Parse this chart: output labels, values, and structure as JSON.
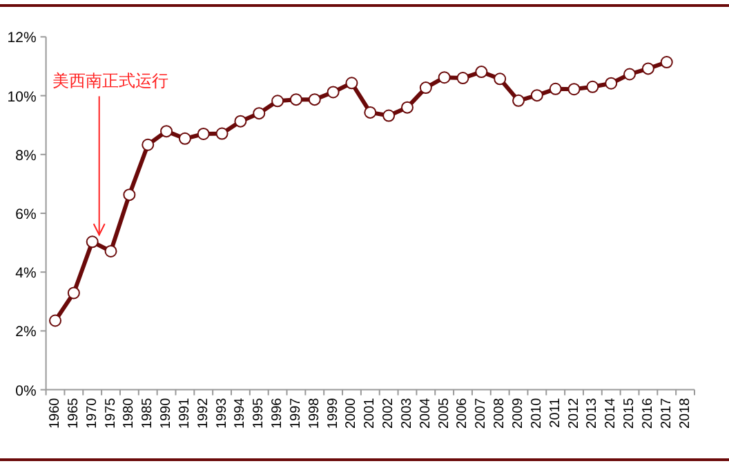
{
  "chart_data": {
    "type": "line",
    "categories": [
      "1960",
      "1965",
      "1970",
      "1975",
      "1980",
      "1985",
      "1990",
      "1991",
      "1992",
      "1993",
      "1994",
      "1995",
      "1996",
      "1997",
      "1998",
      "1999",
      "2000",
      "2001",
      "2002",
      "2003",
      "2004",
      "2005",
      "2006",
      "2007",
      "2008",
      "2009",
      "2010",
      "2011",
      "2012",
      "2013",
      "2014",
      "2015",
      "2016",
      "2017",
      "2018"
    ],
    "series": [
      {
        "color": "#6b0a0a",
        "values": [
          2.35,
          3.29,
          5.03,
          4.71,
          6.63,
          8.33,
          8.79,
          8.54,
          8.7,
          8.71,
          9.13,
          9.4,
          9.82,
          9.87,
          9.87,
          10.12,
          10.43,
          9.43,
          9.32,
          9.6,
          10.27,
          10.62,
          10.6,
          10.81,
          10.57,
          9.83,
          10.01,
          10.23,
          10.22,
          10.3,
          10.42,
          10.73,
          10.92,
          11.14,
          null
        ]
      }
    ],
    "ylim": [
      0,
      12
    ],
    "yticks": [
      {
        "value": 0,
        "label": "0%"
      },
      {
        "value": 2,
        "label": "2%"
      },
      {
        "value": 4,
        "label": "4%"
      },
      {
        "value": 6,
        "label": "6%"
      },
      {
        "value": 8,
        "label": "8%"
      },
      {
        "value": 10,
        "label": "10%"
      },
      {
        "value": 12,
        "label": "12%"
      }
    ],
    "marker": "circle",
    "line_style": "solid",
    "grid": false,
    "annotations": [
      {
        "text": "美西南正式运行",
        "x": "1970",
        "y": 5.03
      }
    ]
  }
}
